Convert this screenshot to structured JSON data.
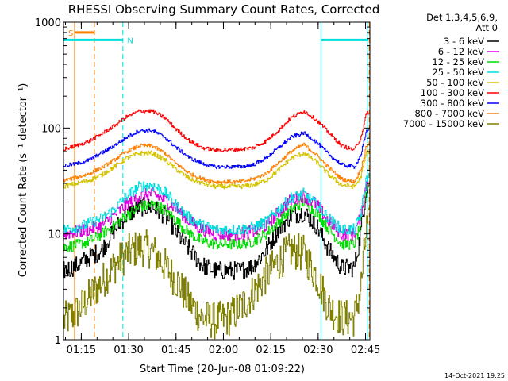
{
  "chart_data": {
    "type": "line",
    "title": "RHESSI Observing Summary Count Rates, Corrected",
    "xlabel": "Start Time (20-Jun-08 01:09:22)",
    "ylabel": "Corrected Count Rate (s⁻¹ detector⁻¹)",
    "x_unit": "minutes after 01:09:22 UT",
    "xlim": [
      0,
      97
    ],
    "ylim": [
      1,
      1000
    ],
    "y_scale": "log",
    "x_ticks": [
      {
        "value": 5.63,
        "label": "01:15"
      },
      {
        "value": 20.63,
        "label": "01:30"
      },
      {
        "value": 35.63,
        "label": "01:45"
      },
      {
        "value": 50.63,
        "label": "02:00"
      },
      {
        "value": 65.63,
        "label": "02:15"
      },
      {
        "value": 80.63,
        "label": "02:30"
      },
      {
        "value": 95.63,
        "label": "02:45"
      }
    ],
    "y_ticks": [
      {
        "value": 1,
        "label": "1"
      },
      {
        "value": 10,
        "label": "10"
      },
      {
        "value": 100,
        "label": "100"
      },
      {
        "value": 1000,
        "label": "1000"
      }
    ],
    "legend": {
      "placement": "right",
      "header": [
        "Det 1,3,4,5,6,9,",
        "Att 0"
      ]
    },
    "series": [
      {
        "name": "3 - 6 keV",
        "color": "#000000",
        "noise": 0.5,
        "x": [
          0,
          4,
          8,
          12,
          16,
          20,
          24,
          28,
          32,
          36,
          40,
          44,
          48,
          52,
          56,
          60,
          64,
          68,
          72,
          76,
          80,
          84,
          88,
          92,
          94,
          96
        ],
        "values": [
          4.5,
          5,
          6,
          7,
          11,
          15,
          18,
          18,
          15,
          10,
          7,
          5,
          4.5,
          4.5,
          4.5,
          5,
          7,
          11,
          15,
          16,
          12,
          7,
          4.8,
          4.8,
          10,
          30
        ]
      },
      {
        "name": "6 - 12 keV",
        "color": "#dd00dd",
        "noise": 0.35,
        "x": [
          0,
          4,
          8,
          12,
          16,
          20,
          24,
          28,
          32,
          36,
          40,
          44,
          48,
          52,
          56,
          60,
          64,
          68,
          72,
          76,
          80,
          84,
          88,
          92,
          94,
          96
        ],
        "values": [
          10,
          10.5,
          11,
          12,
          15,
          19,
          23,
          24,
          21,
          17,
          13,
          11,
          10,
          10,
          10,
          10.5,
          12,
          16,
          21,
          23,
          19,
          13,
          10,
          10,
          15,
          32
        ]
      },
      {
        "name": "12 - 25 keV",
        "color": "#00dd00",
        "noise": 0.3,
        "x": [
          0,
          4,
          8,
          12,
          16,
          20,
          24,
          28,
          32,
          36,
          40,
          44,
          48,
          52,
          56,
          60,
          64,
          68,
          72,
          76,
          80,
          84,
          88,
          92,
          94,
          96
        ],
        "values": [
          7.5,
          7.8,
          8.5,
          10,
          12,
          15,
          18,
          19,
          17,
          13,
          10,
          8.5,
          8,
          8,
          8,
          8.5,
          10,
          13,
          17,
          20,
          16,
          11,
          8,
          8,
          12,
          30
        ]
      },
      {
        "name": "25 - 50 keV",
        "color": "#00dddd",
        "noise": 0.3,
        "x": [
          0,
          4,
          8,
          12,
          16,
          20,
          24,
          28,
          32,
          36,
          40,
          44,
          48,
          52,
          56,
          60,
          64,
          68,
          72,
          76,
          80,
          84,
          88,
          92,
          94,
          96
        ],
        "values": [
          11,
          11.5,
          12.5,
          14,
          17,
          23,
          28,
          29,
          25,
          18,
          14,
          12,
          11,
          11,
          11,
          11.5,
          13,
          17,
          22,
          24,
          19,
          14,
          11,
          11,
          15,
          35
        ]
      },
      {
        "name": "50 - 100 keV",
        "color": "#d4c400",
        "noise": 0.12,
        "x": [
          0,
          4,
          8,
          12,
          16,
          20,
          24,
          28,
          32,
          36,
          40,
          44,
          48,
          52,
          56,
          60,
          64,
          68,
          72,
          76,
          80,
          84,
          88,
          92,
          94,
          96
        ],
        "values": [
          28,
          30,
          32,
          36,
          43,
          52,
          58,
          58,
          50,
          40,
          33,
          30,
          28,
          28,
          28,
          29,
          32,
          40,
          52,
          58,
          48,
          36,
          29,
          28,
          34,
          60
        ]
      },
      {
        "name": "100 - 300 keV",
        "color": "#ff0000",
        "noise": 0.1,
        "x": [
          0,
          4,
          8,
          12,
          16,
          20,
          24,
          28,
          32,
          36,
          40,
          44,
          48,
          52,
          56,
          60,
          64,
          68,
          72,
          76,
          80,
          84,
          88,
          92,
          94,
          96
        ],
        "values": [
          63,
          68,
          75,
          88,
          105,
          128,
          145,
          145,
          125,
          95,
          75,
          65,
          62,
          62,
          63,
          65,
          75,
          95,
          125,
          145,
          120,
          90,
          68,
          62,
          80,
          140
        ]
      },
      {
        "name": "300 - 800 keV",
        "color": "#0000ff",
        "noise": 0.1,
        "x": [
          0,
          4,
          8,
          12,
          16,
          20,
          24,
          28,
          32,
          36,
          40,
          44,
          48,
          52,
          56,
          60,
          64,
          68,
          72,
          76,
          80,
          84,
          88,
          92,
          94,
          96
        ],
        "values": [
          44,
          46,
          50,
          58,
          68,
          82,
          95,
          95,
          82,
          64,
          52,
          46,
          43,
          43,
          43,
          45,
          52,
          65,
          82,
          90,
          74,
          56,
          45,
          43,
          55,
          95
        ]
      },
      {
        "name": "800 - 7000 keV",
        "color": "#ff8000",
        "noise": 0.1,
        "x": [
          0,
          4,
          8,
          12,
          16,
          20,
          24,
          28,
          32,
          36,
          40,
          44,
          48,
          52,
          56,
          60,
          64,
          68,
          72,
          76,
          80,
          84,
          88,
          92,
          94,
          96
        ],
        "values": [
          32,
          34,
          37,
          42,
          50,
          60,
          68,
          68,
          58,
          45,
          37,
          33,
          31,
          31,
          31,
          33,
          37,
          47,
          60,
          70,
          56,
          42,
          33,
          31,
          40,
          70
        ]
      },
      {
        "name": "7000 - 15000 keV",
        "color": "#808000",
        "noise": 1.0,
        "x": [
          0,
          4,
          8,
          12,
          16,
          20,
          24,
          28,
          32,
          36,
          40,
          44,
          48,
          52,
          56,
          60,
          64,
          68,
          72,
          76,
          80,
          84,
          88,
          92,
          94,
          96
        ],
        "values": [
          1.5,
          1.8,
          2.5,
          3.5,
          5,
          6.5,
          7.5,
          7,
          5,
          3.5,
          2.2,
          1.6,
          1.5,
          1.6,
          2,
          2.8,
          4,
          5.5,
          7,
          6.5,
          4,
          2,
          1.6,
          1.6,
          3,
          12
        ]
      }
    ],
    "markers": [
      {
        "x": 3.5,
        "color": "#ff8000",
        "style": "solid"
      },
      {
        "x": 9.8,
        "color": "#ff8000",
        "style": "dashed"
      },
      {
        "x": 18.8,
        "color": "#00dddd",
        "style": "dashed"
      },
      {
        "x": 81.5,
        "color": "#00dddd",
        "style": "solid"
      },
      {
        "x": 96.3,
        "color": "#00dddd",
        "style": "solid"
      },
      {
        "x": 96.8,
        "color": "#ff8000",
        "style": "dashed"
      }
    ],
    "flag_bars": [
      {
        "label": "S",
        "color": "#ff8000",
        "x_start": 3.5,
        "x_end": 9.8,
        "label_x": 1.5,
        "level": 800
      },
      {
        "label": "N",
        "color": "#00dddd",
        "x_start": 0,
        "x_end": 18.8,
        "label_x": 20.2,
        "level": 680
      },
      {
        "label": "",
        "color": "#00dddd",
        "x_start": 81.5,
        "x_end": 96.3,
        "level": 680
      }
    ]
  },
  "footer": {
    "timestamp": "14-Oct-2021 19:25"
  }
}
